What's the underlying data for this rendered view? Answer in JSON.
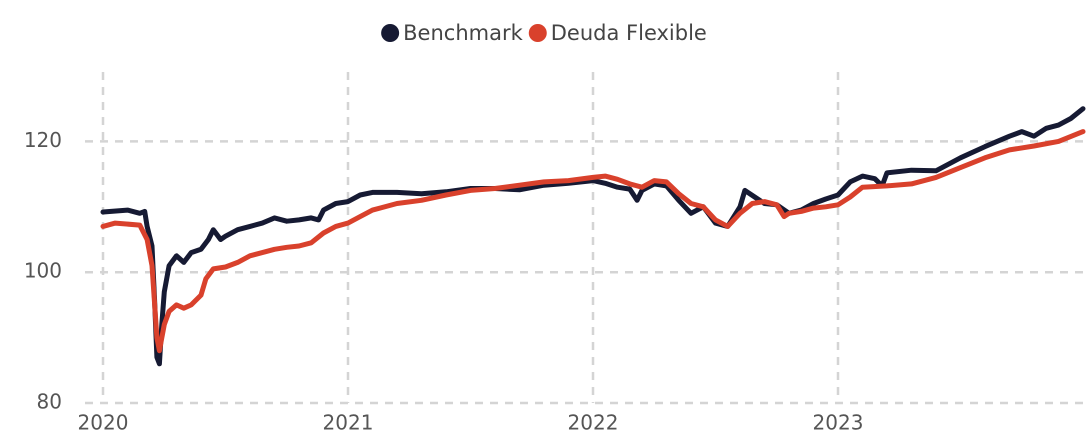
{
  "chart_data": {
    "type": "line",
    "xlim": [
      2020,
      2024
    ],
    "xticks": [
      2020,
      2021,
      2022,
      2023
    ],
    "ylim": [
      80,
      130
    ],
    "yticks": [
      80,
      100,
      120
    ],
    "grid": true,
    "legend": "top",
    "series": [
      {
        "name": "Benchmark",
        "color": "#161a33",
        "x": [
          2020.0,
          2020.1,
          2020.15,
          2020.17,
          2020.18,
          2020.2,
          2020.21,
          2020.22,
          2020.23,
          2020.24,
          2020.25,
          2020.27,
          2020.3,
          2020.33,
          2020.36,
          2020.4,
          2020.43,
          2020.45,
          2020.48,
          2020.5,
          2020.55,
          2020.6,
          2020.65,
          2020.7,
          2020.75,
          2020.8,
          2020.85,
          2020.88,
          2020.9,
          2020.95,
          2021.0,
          2021.05,
          2021.1,
          2021.2,
          2021.3,
          2021.4,
          2021.5,
          2021.6,
          2021.7,
          2021.8,
          2021.9,
          2022.0,
          2022.05,
          2022.1,
          2022.15,
          2022.18,
          2022.2,
          2022.25,
          2022.3,
          2022.35,
          2022.4,
          2022.45,
          2022.5,
          2022.55,
          2022.6,
          2022.62,
          2022.66,
          2022.7,
          2022.75,
          2022.8,
          2022.85,
          2022.9,
          2022.95,
          2023.0,
          2023.05,
          2023.1,
          2023.15,
          2023.18,
          2023.2,
          2023.3,
          2023.4,
          2023.5,
          2023.6,
          2023.7,
          2023.75,
          2023.8,
          2023.85,
          2023.9,
          2023.95,
          2024.0
        ],
        "values": [
          109.2,
          109.5,
          109,
          109.3,
          107,
          104,
          96,
          87,
          86,
          92,
          97,
          101,
          102.5,
          101.5,
          103,
          103.5,
          105,
          106.5,
          105,
          105.5,
          106.5,
          107,
          107.5,
          108.3,
          107.8,
          108,
          108.3,
          108,
          109.5,
          110.5,
          110.8,
          111.8,
          112.2,
          112.2,
          112,
          112.3,
          112.8,
          112.8,
          112.6,
          113.3,
          113.6,
          114,
          113.6,
          113,
          112.7,
          111,
          112.5,
          113.5,
          113.2,
          111,
          109,
          110,
          107.5,
          107,
          110,
          112.5,
          111.5,
          110.5,
          110.3,
          109,
          109.5,
          110.5,
          111.2,
          111.8,
          113.8,
          114.7,
          114.3,
          113.2,
          115.2,
          115.6,
          115.5,
          117.5,
          119.2,
          120.8,
          121.5,
          120.8,
          122,
          122.5,
          123.5,
          125
        ]
      },
      {
        "name": "Deuda Flexible",
        "color": "#d9412c",
        "x": [
          2020.0,
          2020.05,
          2020.15,
          2020.18,
          2020.2,
          2020.22,
          2020.23,
          2020.25,
          2020.27,
          2020.3,
          2020.33,
          2020.36,
          2020.4,
          2020.42,
          2020.45,
          2020.5,
          2020.55,
          2020.6,
          2020.65,
          2020.7,
          2020.75,
          2020.8,
          2020.85,
          2020.9,
          2020.95,
          2021.0,
          2021.05,
          2021.1,
          2021.2,
          2021.3,
          2021.4,
          2021.5,
          2021.6,
          2021.7,
          2021.8,
          2021.9,
          2022.0,
          2022.05,
          2022.1,
          2022.15,
          2022.2,
          2022.25,
          2022.3,
          2022.35,
          2022.4,
          2022.45,
          2022.5,
          2022.55,
          2022.6,
          2022.65,
          2022.7,
          2022.75,
          2022.78,
          2022.8,
          2022.85,
          2022.9,
          2022.95,
          2023.0,
          2023.05,
          2023.1,
          2023.2,
          2023.3,
          2023.4,
          2023.5,
          2023.6,
          2023.7,
          2023.8,
          2023.9,
          2024.0
        ],
        "values": [
          107,
          107.5,
          107.2,
          105,
          101,
          90,
          88,
          92,
          94,
          95,
          94.5,
          95,
          96.5,
          99,
          100.5,
          100.8,
          101.5,
          102.5,
          103,
          103.5,
          103.8,
          104,
          104.5,
          106,
          107,
          107.5,
          108.5,
          109.5,
          110.5,
          111,
          111.8,
          112.5,
          112.8,
          113.3,
          113.8,
          114,
          114.5,
          114.7,
          114.2,
          113.5,
          113,
          114,
          113.8,
          112,
          110.5,
          110,
          108,
          107,
          109,
          110.5,
          110.8,
          110.3,
          108.5,
          109,
          109.3,
          109.8,
          110,
          110.3,
          111.5,
          113,
          113.2,
          113.5,
          114.5,
          116,
          117.5,
          118.7,
          119.3,
          120,
          121.5
        ]
      }
    ]
  }
}
